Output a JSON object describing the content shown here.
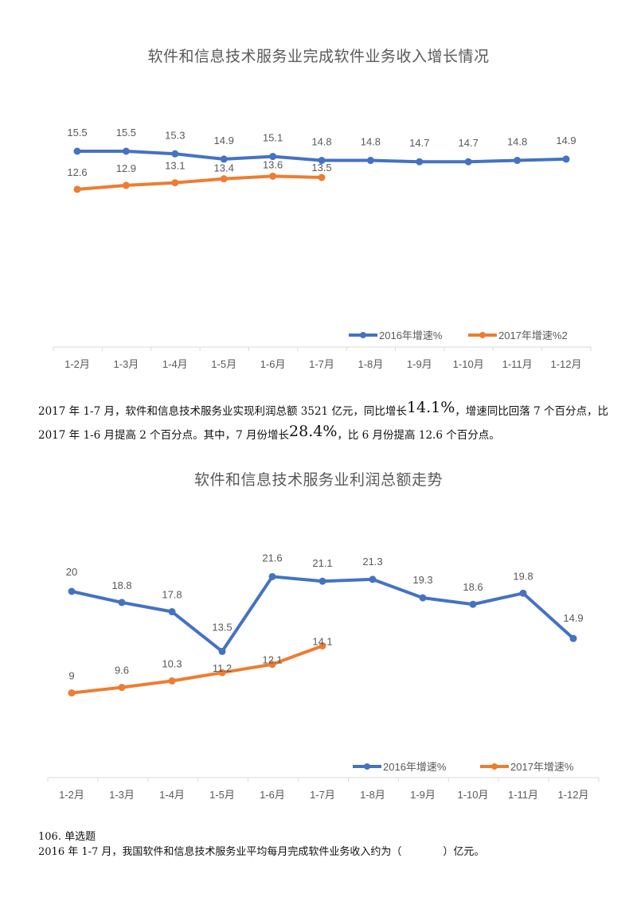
{
  "chart1": {
    "title": "软件和信息技术服务业完成软件业务收入增长情况"
  },
  "paragraph": {
    "line1_a": "2017 年 1-7 月，软件和信息技术服务业实现利润总额 3521 亿元，同比增长",
    "line1_big": "14.1%",
    "line1_b": "，增速同比回落 7 个百分点，比",
    "line2_a": "2017 年 1-6 月提高 2 个百分点。其中，7 月份增长",
    "line2_big": "28.4%",
    "line2_b": "，比 6 月份提高 12.6 个百分点。"
  },
  "chart2": {
    "title": "软件和信息技术服务业利润总额走势"
  },
  "question": {
    "number": "106. 单选题",
    "text": "2016 年 1-7 月，我国软件和信息技术服务业平均每月完成软件业务收入约为（　　　　）亿元。"
  },
  "colors": {
    "series_2016": "#4472C4",
    "series_2017": "#ED7D31",
    "axis": "#D9D9D9",
    "text": "#595959"
  },
  "chart_data": [
    {
      "type": "line",
      "title": "软件和信息技术服务业完成软件业务收入增长情况",
      "xlabel": "",
      "ylabel": "",
      "categories": [
        "1-2月",
        "1-3月",
        "1-4月",
        "1-5月",
        "1-6月",
        "1-7月",
        "1-8月",
        "1-9月",
        "1-10月",
        "1-11月",
        "1-12月"
      ],
      "series": [
        {
          "name": "2016年增速%",
          "color": "#4472C4",
          "values": [
            15.5,
            15.5,
            15.3,
            14.9,
            15.1,
            14.8,
            14.8,
            14.7,
            14.7,
            14.8,
            14.9
          ]
        },
        {
          "name": "2017年增速%2",
          "color": "#ED7D31",
          "values": [
            12.6,
            12.9,
            13.1,
            13.4,
            13.6,
            13.5
          ]
        }
      ],
      "grid": false,
      "legend_position": "bottom-right"
    },
    {
      "type": "line",
      "title": "软件和信息技术服务业利润总额走势",
      "xlabel": "",
      "ylabel": "",
      "categories": [
        "1-2月",
        "1-3月",
        "1-4月",
        "1-5月",
        "1-6月",
        "1-7月",
        "1-8月",
        "1-9月",
        "1-10月",
        "1-11月",
        "1-12月"
      ],
      "series": [
        {
          "name": "2016年增速%",
          "color": "#4472C4",
          "values": [
            20,
            18.8,
            17.8,
            13.5,
            21.6,
            21.1,
            21.3,
            19.3,
            18.6,
            19.8,
            14.9
          ]
        },
        {
          "name": "2017年增速%",
          "color": "#ED7D31",
          "values": [
            9,
            9.6,
            10.3,
            11.2,
            12.1,
            14.1
          ]
        }
      ],
      "grid": false,
      "legend_position": "bottom-right"
    }
  ]
}
